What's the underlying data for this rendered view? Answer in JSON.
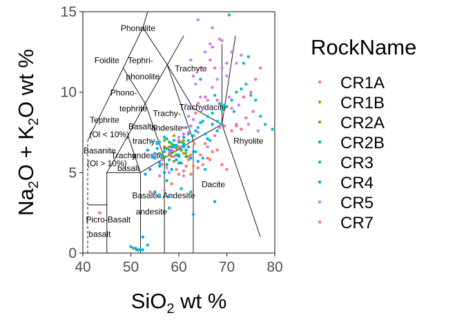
{
  "chart_data": {
    "type": "scatter",
    "xlabel": "SiO",
    "xlabel_sub": "2",
    "xlabel_tail": " wt %",
    "ylabel_a": "Na",
    "ylabel_a_sub": "2",
    "ylabel_b": "O + K",
    "ylabel_b_sub": "2",
    "ylabel_c": "O wt %",
    "xlim": [
      40,
      80
    ],
    "ylim": [
      0,
      15
    ],
    "xticks": [
      "40",
      "50",
      "60",
      "70",
      "80"
    ],
    "yticks": [
      "0",
      "5",
      "10",
      "15"
    ],
    "legend_title": "RockName",
    "legend_position": "right",
    "series": [
      {
        "name": "CR1A",
        "color": "#F8766D",
        "points": [
          [
            43.5,
            2.5
          ],
          [
            54,
            3.8
          ],
          [
            56.5,
            5.5
          ],
          [
            57,
            6.6
          ],
          [
            58.5,
            4.3
          ],
          [
            59.5,
            5.2
          ],
          [
            60,
            4.9
          ],
          [
            61,
            5.1
          ],
          [
            61.5,
            5.4
          ],
          [
            62,
            5.8
          ],
          [
            62.5,
            4.9
          ],
          [
            63,
            5.4
          ],
          [
            63.2,
            6.8
          ],
          [
            64,
            5.3
          ],
          [
            64.5,
            6.1
          ],
          [
            65,
            5.5
          ],
          [
            65.5,
            6.8
          ],
          [
            66,
            5.9
          ],
          [
            66.5,
            5.8
          ],
          [
            67,
            6.3
          ],
          [
            67.5,
            7.3
          ],
          [
            68,
            6.4
          ],
          [
            68.5,
            7.8
          ],
          [
            69,
            5.5
          ],
          [
            70,
            5.2
          ],
          [
            71,
            7.6
          ],
          [
            72,
            7.9
          ],
          [
            59,
            6.3
          ],
          [
            60.5,
            5.6
          ],
          [
            62.5,
            6.1
          ]
        ]
      },
      {
        "name": "CR1B",
        "color": "#CD9600",
        "points": [
          [
            51,
            0.3
          ],
          [
            57,
            7.0
          ],
          [
            58,
            6.6
          ],
          [
            59,
            7.3
          ],
          [
            60,
            6.6
          ],
          [
            61,
            6.2
          ],
          [
            62,
            6.0
          ],
          [
            58.5,
            6.0
          ]
        ]
      },
      {
        "name": "CR2A",
        "color": "#7CAE00",
        "points": [
          [
            50.5,
            0.3
          ],
          [
            51.2,
            0.2
          ],
          [
            56,
            6.2
          ],
          [
            57,
            6.0
          ],
          [
            57.5,
            6.5
          ],
          [
            58,
            6.1
          ],
          [
            58.5,
            6.8
          ],
          [
            59,
            5.7
          ],
          [
            59.5,
            6.5
          ],
          [
            60,
            6.1
          ],
          [
            60.5,
            6.9
          ],
          [
            61,
            7.0
          ],
          [
            61.5,
            6.2
          ]
        ]
      },
      {
        "name": "CR2B",
        "color": "#00BE67",
        "points": [
          [
            56.5,
            5.9
          ],
          [
            57,
            6.5
          ],
          [
            57.5,
            5.5
          ],
          [
            58,
            6.9
          ],
          [
            58.5,
            6.3
          ],
          [
            59,
            6.7
          ],
          [
            59.5,
            6.1
          ],
          [
            60,
            5.6
          ],
          [
            60.5,
            6.4
          ],
          [
            61,
            6.8
          ],
          [
            61.5,
            6.0
          ],
          [
            62,
            6.6
          ]
        ]
      },
      {
        "name": "CR3",
        "color": "#00BFC4",
        "points": [
          [
            51.5,
            0.2
          ],
          [
            52.5,
            0.2
          ],
          [
            53.5,
            0.5
          ],
          [
            55,
            6.2
          ],
          [
            56,
            6.9
          ],
          [
            57,
            7.2
          ],
          [
            58,
            5.8
          ],
          [
            59,
            6.6
          ],
          [
            60,
            6.1
          ],
          [
            61,
            6.7
          ],
          [
            62,
            7.0
          ],
          [
            63,
            7.3
          ],
          [
            64,
            7.8
          ],
          [
            65,
            8.2
          ],
          [
            66,
            8.5
          ],
          [
            67,
            8.7
          ],
          [
            68,
            8.2
          ],
          [
            69,
            8.9
          ],
          [
            70,
            9.1
          ],
          [
            71,
            9.5
          ],
          [
            72,
            10.0
          ],
          [
            73,
            10.2
          ],
          [
            74,
            10.5
          ],
          [
            75,
            9.8
          ],
          [
            76,
            9.5
          ],
          [
            77,
            8.5
          ],
          [
            78,
            8.0
          ],
          [
            79.5,
            7.7
          ],
          [
            73.5,
            11.8
          ],
          [
            70.5,
            14.8
          ],
          [
            68.5,
            9.3
          ],
          [
            64.5,
            10.8
          ],
          [
            67.5,
            9.8
          ],
          [
            71.5,
            8.8
          ],
          [
            74.5,
            12.2
          ],
          [
            69.5,
            9.2
          ],
          [
            65.5,
            5.2
          ],
          [
            66.5,
            7.0
          ],
          [
            63.5,
            6.3
          ],
          [
            61.5,
            7.8
          ],
          [
            62.5,
            3.8
          ],
          [
            58,
            2.8
          ],
          [
            56,
            3.5
          ],
          [
            60.5,
            4.0
          ],
          [
            57.5,
            4.5
          ]
        ]
      },
      {
        "name": "CR4",
        "color": "#00A9FF",
        "points": [
          [
            50,
            0.4
          ],
          [
            51,
            0.3
          ],
          [
            52,
            0.2
          ],
          [
            52.5,
            1.0
          ],
          [
            53,
            4.9
          ],
          [
            53.5,
            6.4
          ],
          [
            54,
            5.2
          ],
          [
            54.5,
            6.9
          ],
          [
            55,
            5.9
          ],
          [
            55.5,
            6.5
          ],
          [
            56,
            5.6
          ],
          [
            56.5,
            6.1
          ],
          [
            57,
            5.0
          ],
          [
            57.5,
            7.1
          ],
          [
            58,
            6.4
          ],
          [
            58.5,
            5.2
          ],
          [
            59,
            7.0
          ],
          [
            59.5,
            5.8
          ],
          [
            60,
            6.9
          ],
          [
            60.5,
            5.6
          ],
          [
            61,
            7.2
          ],
          [
            61.5,
            6.4
          ],
          [
            62,
            7.4
          ],
          [
            62.5,
            5.9
          ],
          [
            63,
            6.3
          ],
          [
            63.5,
            7.6
          ],
          [
            64,
            5.7
          ],
          [
            65,
            5.9
          ],
          [
            66,
            7.1
          ],
          [
            67,
            8.0
          ],
          [
            68,
            7.6
          ],
          [
            69,
            8.0
          ],
          [
            65.5,
            7.4
          ],
          [
            64.5,
            8.1
          ],
          [
            67.5,
            3.2
          ],
          [
            63,
            2.4
          ],
          [
            55,
            3.8
          ],
          [
            58,
            3.5
          ],
          [
            56,
            5.4
          ],
          [
            57,
            6.3
          ],
          [
            58.5,
            6.6
          ],
          [
            60,
            6.0
          ],
          [
            61,
            6.6
          ],
          [
            55.5,
            6.8
          ],
          [
            54.5,
            6.0
          ],
          [
            59.5,
            6.7
          ]
        ]
      },
      {
        "name": "CR5",
        "color": "#C77CFF",
        "points": [
          [
            55,
            6.1
          ],
          [
            56,
            4.8
          ],
          [
            56.5,
            5.8
          ],
          [
            57,
            3.9
          ],
          [
            58,
            5.0
          ],
          [
            59,
            6.0
          ],
          [
            60,
            7.2
          ],
          [
            61,
            7.8
          ],
          [
            62,
            7.5
          ],
          [
            63,
            8.3
          ],
          [
            64,
            7.5
          ],
          [
            65,
            9.0
          ],
          [
            66,
            9.5
          ],
          [
            67,
            10.3
          ],
          [
            68,
            10.8
          ],
          [
            69,
            11.5
          ],
          [
            70,
            11.0
          ],
          [
            71,
            12.5
          ],
          [
            72,
            11.8
          ],
          [
            73,
            12.3
          ],
          [
            62.5,
            12.0
          ],
          [
            63.5,
            10.5
          ],
          [
            65.5,
            12.5
          ],
          [
            66.5,
            13.0
          ],
          [
            68.5,
            13.3
          ],
          [
            70.5,
            9.7
          ],
          [
            72.5,
            9.2
          ],
          [
            74.5,
            8.0
          ],
          [
            76.5,
            7.6
          ],
          [
            64,
            14.5
          ],
          [
            67,
            14.0
          ],
          [
            63,
            11.0
          ],
          [
            61.5,
            9.2
          ],
          [
            64.5,
            9.7
          ],
          [
            62,
            8.5
          ],
          [
            58.5,
            6.4
          ],
          [
            57.5,
            5.3
          ],
          [
            66,
            6.6
          ],
          [
            60.5,
            6.6
          ],
          [
            61,
            4.8
          ]
        ]
      },
      {
        "name": "CR7",
        "color": "#FF61C3",
        "points": [
          [
            58,
            6.2
          ],
          [
            60,
            7.0
          ],
          [
            61,
            7.4
          ],
          [
            62.5,
            7.9
          ],
          [
            63.5,
            8.7
          ],
          [
            65,
            11.5
          ],
          [
            65.5,
            9.7
          ],
          [
            66.5,
            12.0
          ],
          [
            67,
            12.8
          ],
          [
            68,
            9.5
          ],
          [
            69,
            13.2
          ],
          [
            70,
            11.8
          ],
          [
            71,
            9.0
          ],
          [
            72,
            8.0
          ],
          [
            74,
            8.4
          ],
          [
            75,
            10.0
          ],
          [
            76,
            10.8
          ],
          [
            77,
            11.5
          ],
          [
            69.5,
            7.9
          ],
          [
            73,
            7.7
          ],
          [
            67.5,
            11.5
          ],
          [
            75.5,
            8.8
          ],
          [
            73.5,
            9.7
          ],
          [
            64,
            9.3
          ]
        ]
      }
    ],
    "fields": [
      {
        "label": "Phonolite",
        "x": 51.5,
        "y": 13.8
      },
      {
        "label": "Foidite",
        "x": 45.0,
        "y": 11.8
      },
      {
        "label": "Tephri-",
        "x": 52.0,
        "y": 11.8
      },
      {
        "label": "phonolite",
        "x": 52.5,
        "y": 10.8
      },
      {
        "label": "Trachyte",
        "x": 62.5,
        "y": 11.3
      },
      {
        "label": "Phono-",
        "x": 48.5,
        "y": 9.8
      },
      {
        "label": "tephrite",
        "x": 50.5,
        "y": 8.8
      },
      {
        "label": "Trachy-",
        "x": 57.5,
        "y": 8.5
      },
      {
        "label": "Trachydacite",
        "x": 65.0,
        "y": 8.9
      },
      {
        "label": "Tephrite",
        "x": 44.5,
        "y": 8.1
      },
      {
        "label": "Basaltic",
        "x": 52.5,
        "y": 7.7
      },
      {
        "label": "andesite",
        "x": 57.5,
        "y": 7.6
      },
      {
        "label": "(Ol < 10%)",
        "x": 45.5,
        "y": 7.2
      },
      {
        "label": "trachy-",
        "x": 53.0,
        "y": 6.8
      },
      {
        "label": "Rhyolite",
        "x": 74.5,
        "y": 6.8
      },
      {
        "label": "Basanite",
        "x": 43.5,
        "y": 6.2
      },
      {
        "label": "Trachy",
        "x": 48.5,
        "y": 5.9
      },
      {
        "label": "andesite",
        "x": 53.5,
        "y": 5.9
      },
      {
        "label": "(Ol > 10%)",
        "x": 45.0,
        "y": 5.4
      },
      {
        "label": "basalt",
        "x": 49.5,
        "y": 5.1
      },
      {
        "label": "Dacite",
        "x": 67.2,
        "y": 4.1
      },
      {
        "label": "Andesite",
        "x": 60.0,
        "y": 3.4
      },
      {
        "label": "Basaltic",
        "x": 53.3,
        "y": 3.4
      },
      {
        "label": "andesite",
        "x": 54.3,
        "y": 2.4
      },
      {
        "label": "Picro-Basalt",
        "x": 45.3,
        "y": 1.9
      },
      {
        "label": "basalt",
        "x": 43.5,
        "y": 1.0
      }
    ]
  }
}
